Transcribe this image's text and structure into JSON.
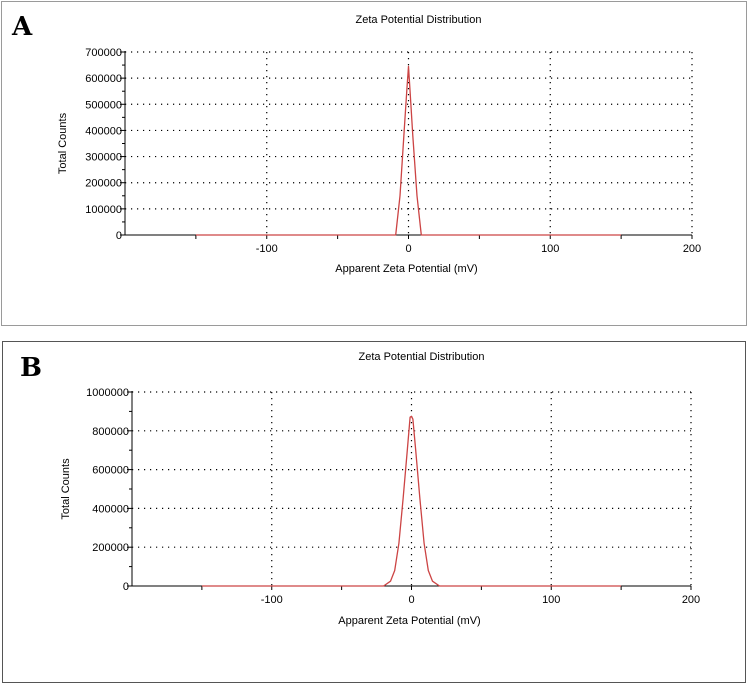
{
  "chart_data": [
    {
      "type": "line",
      "panel_label": "A",
      "title": "Zeta Potential Distribution",
      "xlabel": "Apparent Zeta Potential (mV)",
      "ylabel": "Total Counts",
      "xlim": [
        -200,
        200
      ],
      "ylim": [
        0,
        700000
      ],
      "xticks": [
        -100,
        0,
        100,
        200
      ],
      "yticks": [
        0,
        100000,
        200000,
        300000,
        400000,
        500000,
        600000,
        700000
      ],
      "grid": true,
      "line_color": "#cc4444",
      "series": [
        {
          "x": [
            -150,
            -9,
            -6,
            -3,
            -1,
            0,
            1,
            3,
            6,
            9,
            150
          ],
          "y": [
            0,
            0,
            150000,
            400000,
            570000,
            645000,
            560000,
            380000,
            150000,
            0,
            0
          ]
        }
      ]
    },
    {
      "type": "line",
      "panel_label": "B",
      "title": "Zeta Potential Distribution",
      "xlabel": "Apparent Zeta Potential (mV)",
      "ylabel": "Total Counts",
      "xlim": [
        -200,
        200
      ],
      "ylim": [
        0,
        1000000
      ],
      "xticks": [
        -100,
        0,
        100,
        200
      ],
      "yticks": [
        0,
        200000,
        400000,
        600000,
        800000,
        1000000
      ],
      "grid": true,
      "line_color": "#cc4444",
      "series": [
        {
          "x": [
            -150,
            -20,
            -15,
            -12,
            -9,
            -6,
            -3,
            -1,
            0,
            1,
            3,
            6,
            9,
            12,
            15,
            20,
            150
          ],
          "y": [
            0,
            0,
            25000,
            80000,
            220000,
            450000,
            700000,
            870000,
            875000,
            860000,
            700000,
            450000,
            220000,
            80000,
            25000,
            0,
            0
          ]
        }
      ]
    }
  ]
}
